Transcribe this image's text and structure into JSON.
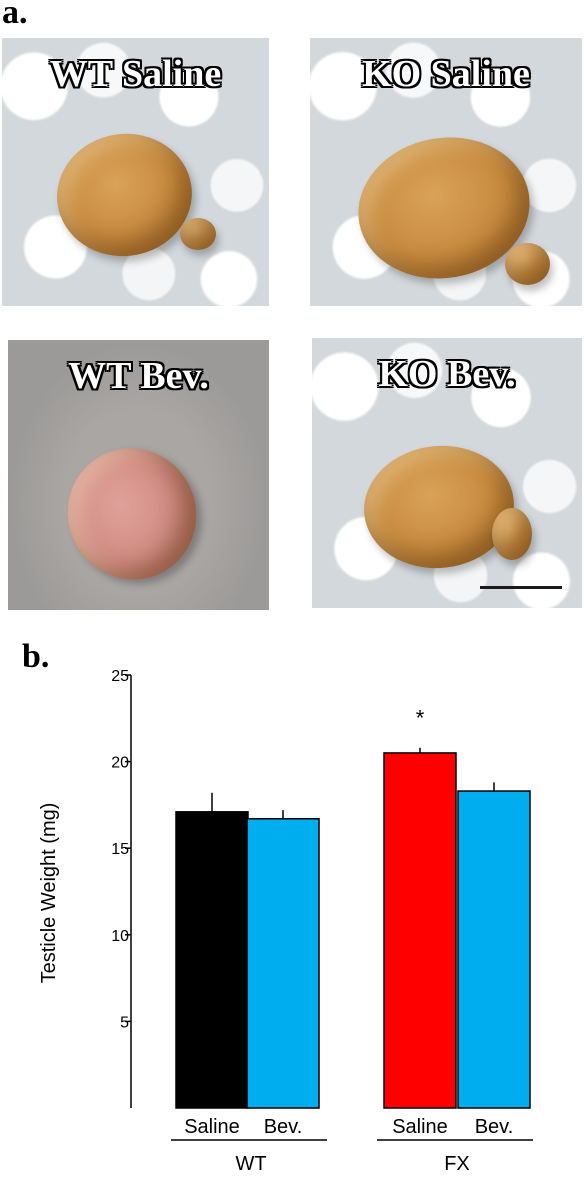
{
  "panel_a": {
    "letter": "a.",
    "photos": [
      {
        "label": "WT Saline"
      },
      {
        "label": "KO Saline"
      },
      {
        "label": "WT Bev."
      },
      {
        "label": "KO Bev."
      }
    ]
  },
  "panel_b": {
    "letter": "b."
  },
  "chart_data": {
    "type": "bar",
    "ylabel": "Testicle Weight (mg)",
    "ylim": [
      0,
      25
    ],
    "yticks": [
      5,
      10,
      15,
      20,
      25
    ],
    "groups": [
      "WT",
      "FX"
    ],
    "bars": [
      {
        "group": "WT",
        "label": "Saline",
        "value": 17.1,
        "error": 1.1,
        "color": "#000000",
        "significance": ""
      },
      {
        "group": "WT",
        "label": "Bev.",
        "value": 16.7,
        "error": 0.5,
        "color": "#00aeef",
        "significance": ""
      },
      {
        "group": "FX",
        "label": "Saline",
        "value": 20.5,
        "error": 0.3,
        "color": "#ff0000",
        "significance": "*"
      },
      {
        "group": "FX",
        "label": "Bev.",
        "value": 18.3,
        "error": 0.5,
        "color": "#00aeef",
        "significance": ""
      }
    ]
  }
}
